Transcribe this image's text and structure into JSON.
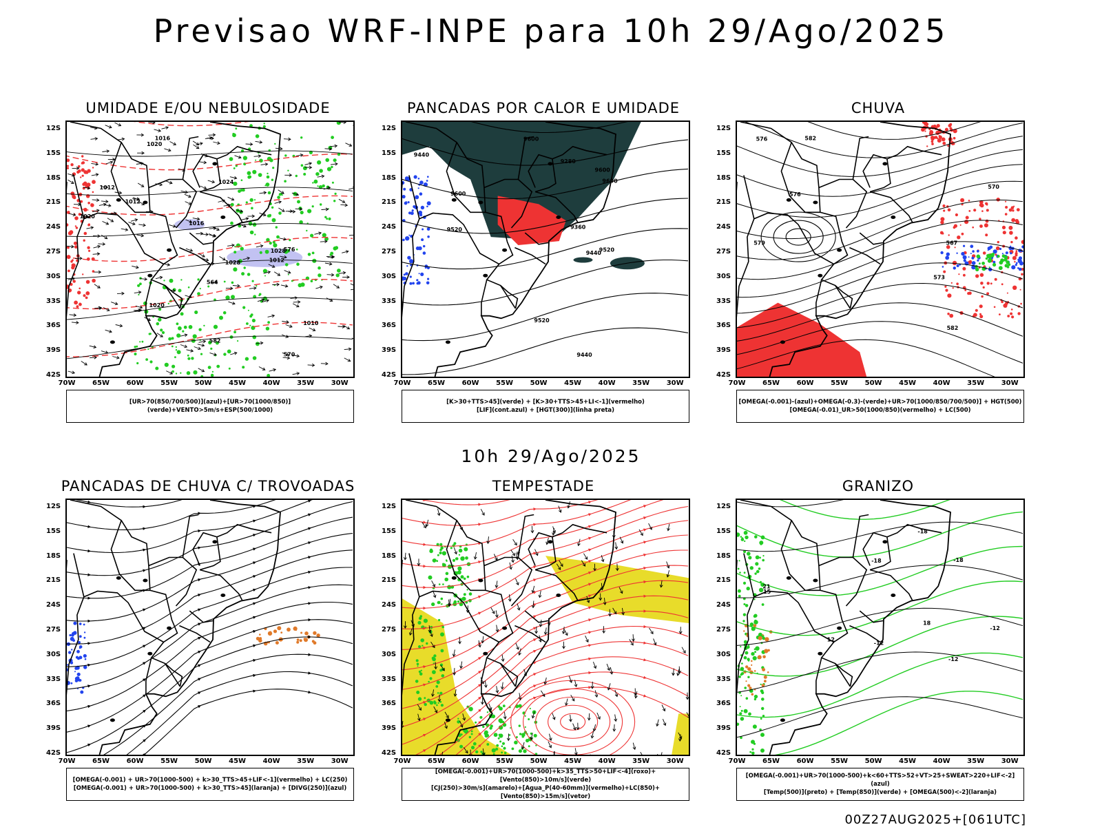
{
  "title": "Previsao WRF-INPE  para 10h 29/Ago/2025",
  "subtitle": "10h 29/Ago/2025",
  "footer": "00Z27AUG2025+[061UTC]",
  "axes": {
    "lat_labels": [
      "12S",
      "15S",
      "18S",
      "21S",
      "24S",
      "27S",
      "30S",
      "33S",
      "36S",
      "39S",
      "42S"
    ],
    "lon_labels": [
      "70W",
      "65W",
      "60W",
      "55W",
      "50W",
      "45W",
      "40W",
      "35W",
      "30W"
    ]
  },
  "colors": {
    "green": "#22cc22",
    "blue": "#2244ee",
    "red": "#ee3333",
    "lavender": "#b7b7f0",
    "darkteal": "#1e3d3d",
    "yellow": "#e8dc2a",
    "orange": "#e07a2a"
  },
  "panels": [
    {
      "title": "UMIDADE E/OU NEBULOSIDADE",
      "legend": [
        "[UR>70(850/700/500)](azul)+[UR>70(1000/850)](verde)+VENTO>5m/s+ESP(500/1000)"
      ],
      "contour_labels": [
        "1012",
        "1012",
        "1016",
        "1020",
        "1020",
        "1024",
        "1020",
        "1028",
        "1010",
        "1012",
        "1016",
        "1028",
        "570",
        "576",
        "564",
        "582"
      ]
    },
    {
      "title": "PANCADAS POR CALOR E UMIDADE",
      "legend": [
        "[K>30+TTS>45](verde) + [K>30+TTS>45+LI<-1](vermelho)",
        "[LIF](cont.azul) + [HGT(300)](linha preta)"
      ],
      "contour_labels": [
        "9600",
        "9600",
        "9600",
        "9600",
        "9520",
        "9520",
        "9520",
        "9440",
        "9440",
        "9440",
        "9360",
        "9280"
      ]
    },
    {
      "title": "CHUVA",
      "legend": [
        "[OMEGA(-0.001)-(azul)+OMEGA(-0.3)-(verde)+UR>70(1000/850/700/500)] + HGT(500)",
        "[OMEGA(-0.01)_UR>50(1000/850)(vermelho) + LC(500)"
      ],
      "contour_labels": [
        "582",
        "582",
        "576",
        "579",
        "576",
        "573",
        "570",
        "567"
      ]
    },
    {
      "title": "PANCADAS DE CHUVA C/ TROVOADAS",
      "legend": [
        "[OMEGA(-0.001) + UR>70(1000-500) + k>30_TTS>45+LIF<-1](vermelho) + LC(250)",
        "[OMEGA(-0.001) + UR>70(1000-500) + k>30_TTS>45](laranja) + [DIVG(250)](azul)"
      ],
      "contour_labels": []
    },
    {
      "title": "TEMPESTADE",
      "legend": [
        "[OMEGA(-0.001)+UR>70(1000-500)+k>35_TTS>50+LIF<-4](roxo)+[Vento(850)>10m/s](verde)",
        "[CJ(250)>30m/s](amarelo)+[Agua_P(40-60mm)](vermelho)+LC(850)+[Vento(850)>15m/s](vetor)"
      ],
      "contour_labels": []
    },
    {
      "title": "GRANIZO",
      "legend": [
        "[OMEGA(-0.001)+UR>70(1000-500)+k<60+TTS>52+VT>25+SWEAT>220+LIF<-2](azul)",
        "[Temp(500)](preto) + [Temp(850)](verde) + [OMEGA(500)<-2](laranja)"
      ],
      "contour_labels": [
        "-12",
        "-18",
        "-12",
        "-18",
        "-12",
        "-18",
        "12",
        "15",
        "18",
        "21"
      ]
    }
  ]
}
